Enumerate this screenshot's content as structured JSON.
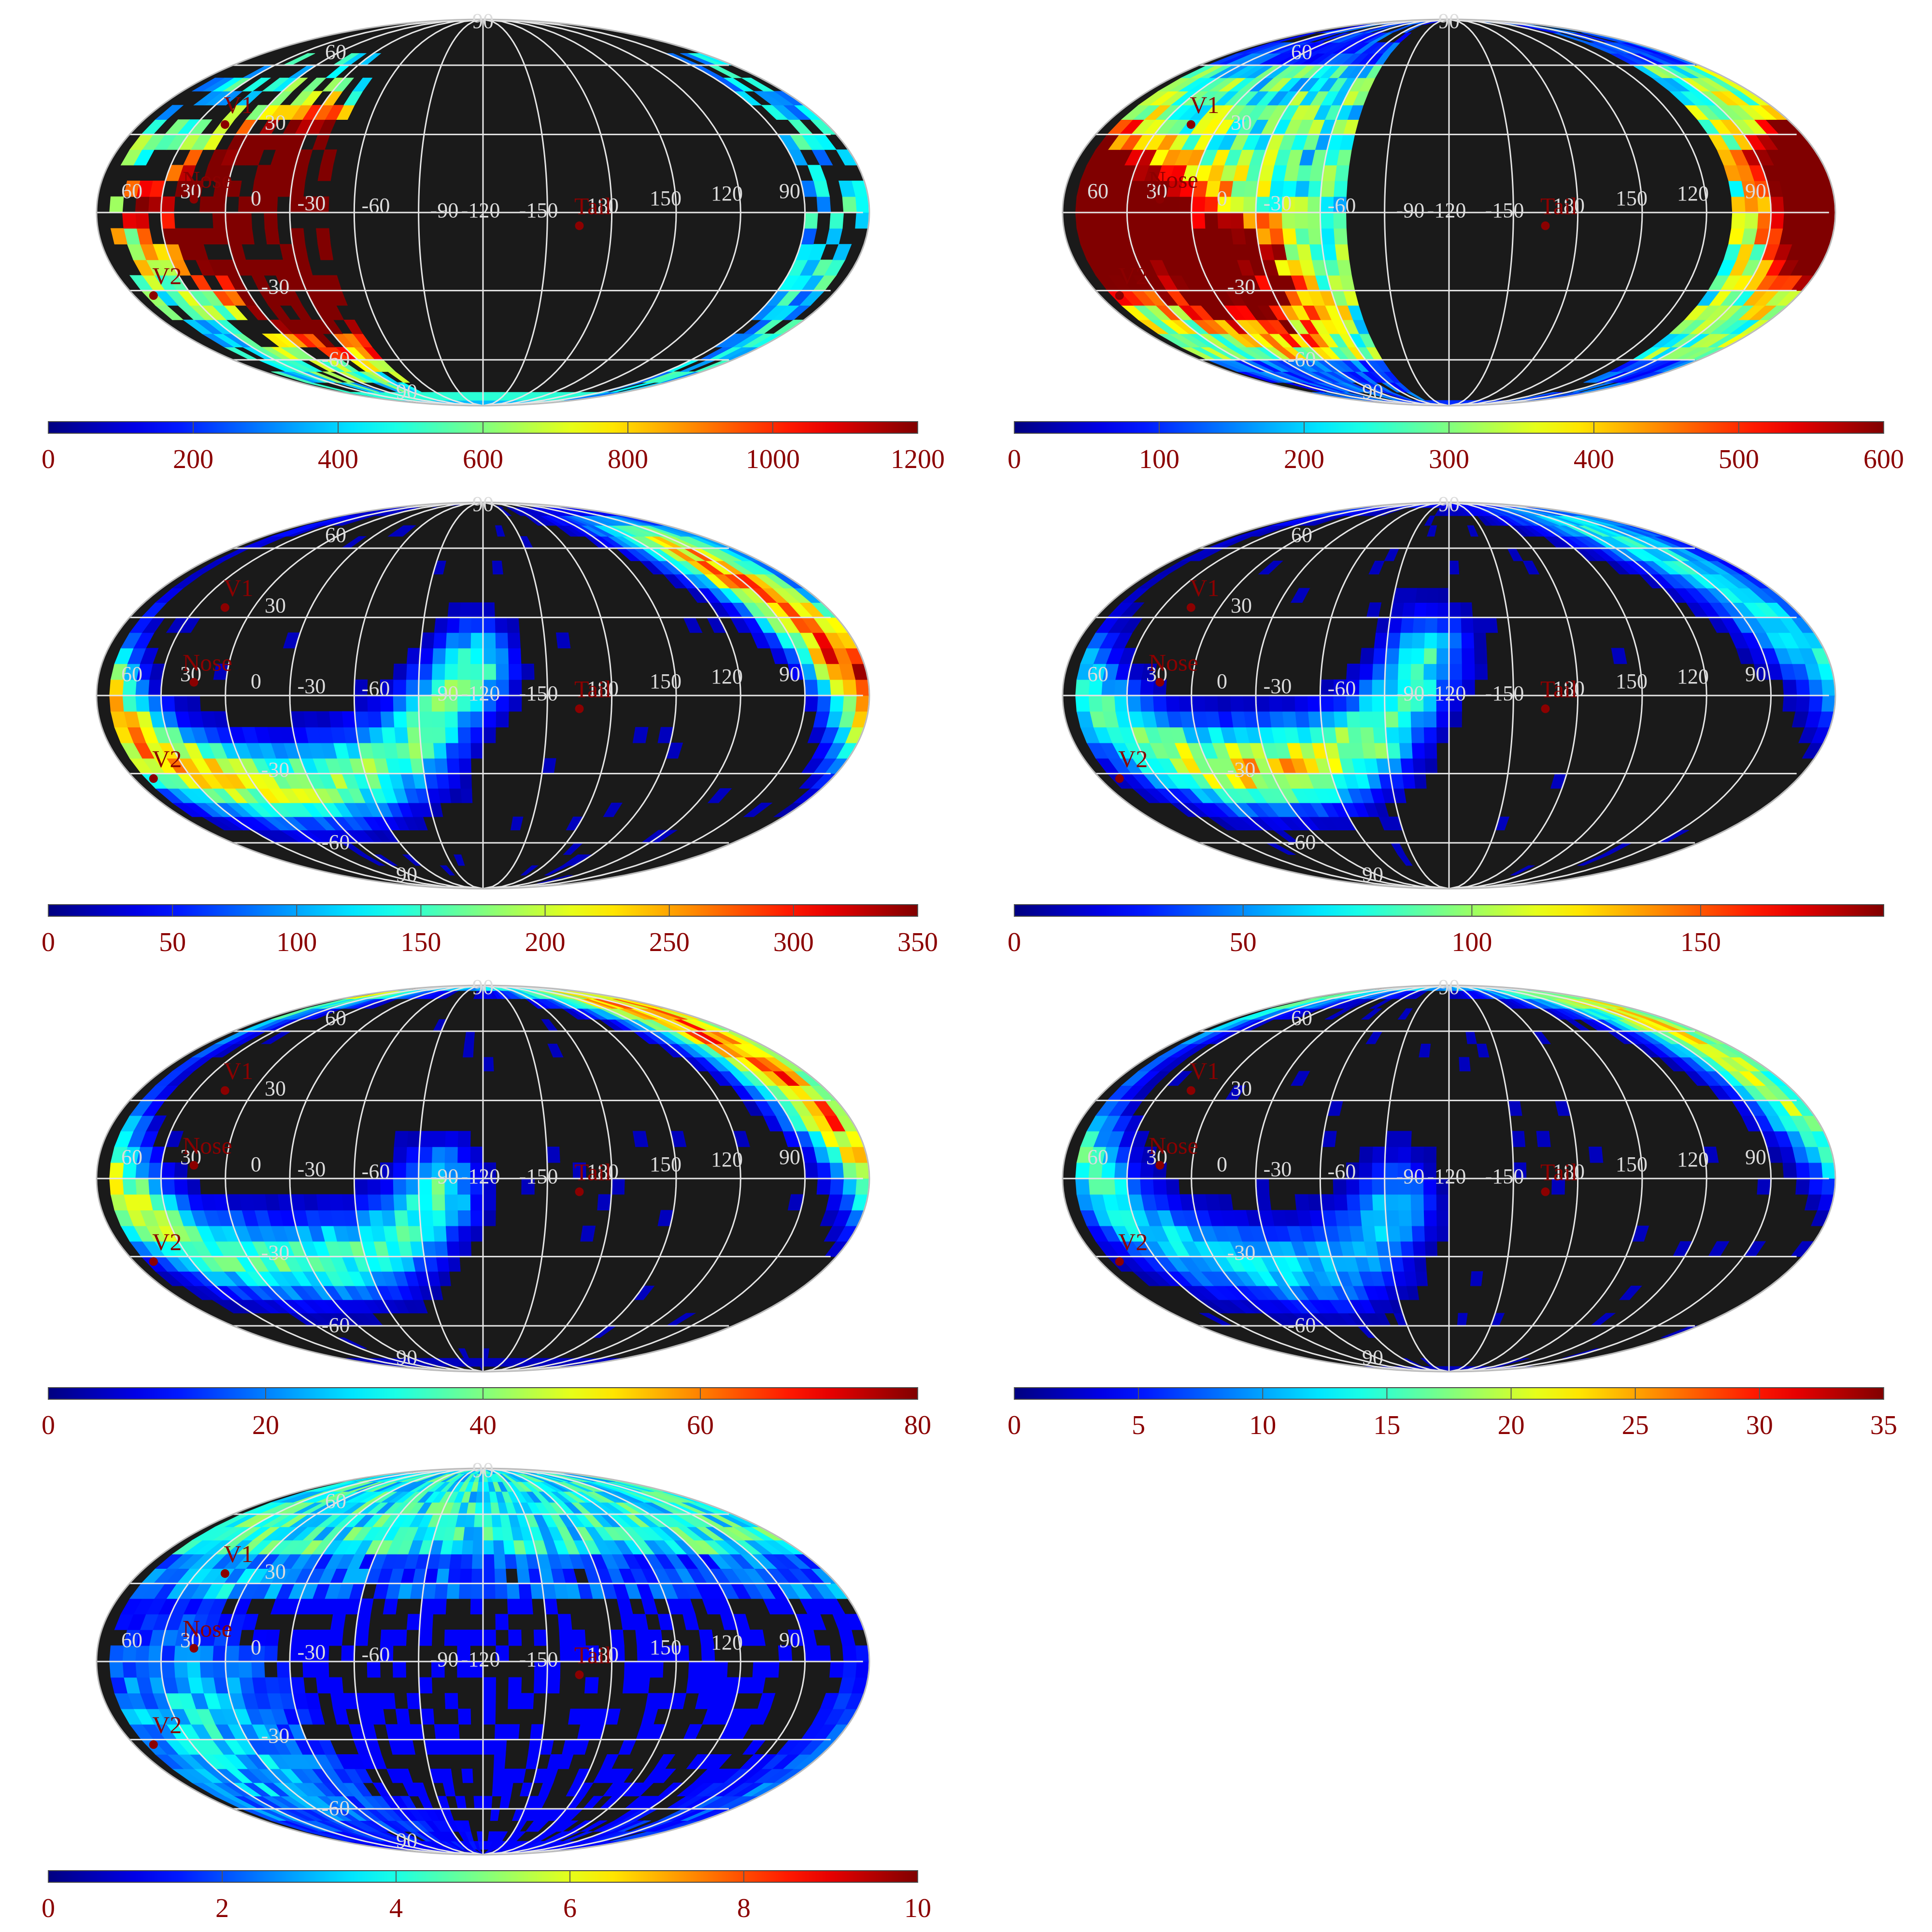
{
  "figure": {
    "background": "#ffffff",
    "map_background": "#1a1a1a",
    "grid_color": "#e6e6e6",
    "grid_label_color": "#dcdcdc",
    "marker_color": "#8b0000",
    "colorbar_label_color": "#8b0000",
    "colormap": "jet",
    "projection": "mollweide"
  },
  "chart_data": [
    {
      "type": "heatmap",
      "projection": "mollweide",
      "colorbar": {
        "range": [
          0,
          1200
        ],
        "tick_labels": [
          "0",
          "200",
          "400",
          "600",
          "800",
          "1000",
          "1200"
        ]
      },
      "grid_labels": {
        "lat": [
          "90",
          "60",
          "30",
          "-30",
          "-60",
          "90"
        ],
        "lon": [
          "60",
          "30",
          "0",
          "-30",
          "-60",
          "-90",
          "-120",
          "-150",
          "180",
          "150",
          "120",
          "90"
        ]
      },
      "markers": [
        {
          "name": "V1",
          "lon": -105,
          "lat": 34
        },
        {
          "name": "Nose",
          "lon": -105,
          "lat": 5
        },
        {
          "name": "V2",
          "lon": -70,
          "lat": -32
        },
        {
          "name": "Tail",
          "lon": 75,
          "lat": -5
        }
      ],
      "hotspots": [
        {
          "lon": -150,
          "lat": 15,
          "value": 1100
        },
        {
          "lon": -150,
          "lat": -10,
          "value": 1150
        },
        {
          "lon": -150,
          "lat": -35,
          "value": 1050
        },
        {
          "lon": -140,
          "lat": 5,
          "value": 900
        },
        {
          "lon": -125,
          "lat": -5,
          "value": 850
        },
        {
          "lon": -90,
          "lat": 0,
          "value": 700
        }
      ],
      "data_lon_range": [
        -170,
        -30
      ],
      "data_lat_range": [
        -90,
        60
      ]
    },
    {
      "type": "heatmap",
      "projection": "mollweide",
      "colorbar": {
        "range": [
          0,
          600
        ],
        "tick_labels": [
          "0",
          "100",
          "200",
          "300",
          "400",
          "500",
          "600"
        ]
      },
      "grid_labels": {
        "lat": [
          "90",
          "60",
          "30",
          "-30",
          "-60",
          "90"
        ],
        "lon": [
          "60",
          "30",
          "0",
          "-30",
          "-60",
          "-90",
          "-120",
          "-150",
          "180",
          "150",
          "120",
          "90"
        ]
      },
      "markers": [
        {
          "name": "V1",
          "lon": -105,
          "lat": 34
        },
        {
          "name": "Nose",
          "lon": -105,
          "lat": 5
        },
        {
          "name": "V2",
          "lon": -70,
          "lat": -32
        },
        {
          "name": "Tail",
          "lon": 75,
          "lat": -5
        }
      ],
      "hotspots": [
        {
          "lon": -60,
          "lat": 0,
          "value": 450
        },
        {
          "lon": -80,
          "lat": -5,
          "value": 420
        },
        {
          "lon": -140,
          "lat": -25,
          "value": 430
        },
        {
          "lon": -50,
          "lat": 10,
          "value": 380
        },
        {
          "lon": -110,
          "lat": -10,
          "value": 350
        }
      ],
      "data_lon_range": [
        -180,
        -10
      ],
      "data_lat_range": [
        -90,
        90
      ]
    },
    {
      "type": "heatmap",
      "projection": "mollweide",
      "colorbar": {
        "range": [
          0,
          350
        ],
        "tick_labels": [
          "0",
          "50",
          "100",
          "150",
          "200",
          "250",
          "300",
          "350"
        ]
      },
      "grid_labels": {
        "lat": [
          "90",
          "60",
          "30",
          "-30",
          "-60",
          "90"
        ],
        "lon": [
          "60",
          "30",
          "0",
          "-30",
          "-60",
          "-90",
          "-120",
          "-150",
          "180",
          "150",
          "120",
          "90"
        ]
      },
      "markers": [
        {
          "name": "V1",
          "lon": -105,
          "lat": 34
        },
        {
          "name": "Nose",
          "lon": -105,
          "lat": 5
        },
        {
          "name": "V2",
          "lon": -70,
          "lat": -32
        },
        {
          "name": "Tail",
          "lon": 75,
          "lat": -5
        }
      ],
      "ribbon": [
        [
          -20,
          60
        ],
        [
          -30,
          45
        ],
        [
          -40,
          30
        ],
        [
          -50,
          15
        ],
        [
          -60,
          0
        ],
        [
          -70,
          -15
        ],
        [
          -90,
          -28
        ],
        [
          -120,
          -35
        ],
        [
          -150,
          -35
        ],
        [
          -180,
          -30
        ],
        [
          155,
          -20
        ],
        [
          140,
          -5
        ],
        [
          125,
          10
        ]
      ],
      "peak": {
        "lon": -55,
        "lat": 12,
        "value": 300
      }
    },
    {
      "type": "heatmap",
      "projection": "mollweide",
      "colorbar": {
        "range": [
          0,
          190
        ],
        "tick_labels": [
          "0",
          "50",
          "100",
          "150"
        ]
      },
      "grid_labels": {
        "lat": [
          "90",
          "60",
          "30",
          "-30",
          "-60",
          "90"
        ],
        "lon": [
          "60",
          "30",
          "0",
          "-30",
          "-60",
          "-90",
          "-120",
          "-150",
          "180",
          "150",
          "120",
          "90"
        ]
      },
      "markers": [
        {
          "name": "V1",
          "lon": -105,
          "lat": 34
        },
        {
          "name": "Nose",
          "lon": -105,
          "lat": 5
        },
        {
          "name": "V2",
          "lon": -70,
          "lat": -32
        },
        {
          "name": "Tail",
          "lon": 75,
          "lat": -5
        }
      ],
      "ribbon": [
        [
          -10,
          70
        ],
        [
          -25,
          55
        ],
        [
          -35,
          40
        ],
        [
          -45,
          25
        ],
        [
          -60,
          10
        ],
        [
          -75,
          -5
        ],
        [
          -95,
          -20
        ],
        [
          -120,
          -28
        ],
        [
          -150,
          -28
        ],
        [
          -180,
          -25
        ],
        [
          155,
          -15
        ],
        [
          140,
          0
        ],
        [
          130,
          15
        ]
      ],
      "peak": {
        "lon": -150,
        "lat": -28,
        "value": 125
      }
    },
    {
      "type": "heatmap",
      "projection": "mollweide",
      "colorbar": {
        "range": [
          0,
          80
        ],
        "tick_labels": [
          "0",
          "20",
          "40",
          "60",
          "80"
        ]
      },
      "grid_labels": {
        "lat": [
          "90",
          "60",
          "30",
          "-30",
          "-60",
          "90"
        ],
        "lon": [
          "60",
          "30",
          "0",
          "-30",
          "-60",
          "-90",
          "-120",
          "-150",
          "180",
          "150",
          "120",
          "90"
        ]
      },
      "markers": [
        {
          "name": "V1",
          "lon": -105,
          "lat": 34
        },
        {
          "name": "Nose",
          "lon": -105,
          "lat": 5
        },
        {
          "name": "V2",
          "lon": -70,
          "lat": -32
        },
        {
          "name": "Tail",
          "lon": 75,
          "lat": -5
        }
      ],
      "ribbon": [
        [
          -30,
          75
        ],
        [
          -35,
          60
        ],
        [
          -40,
          45
        ],
        [
          -45,
          30
        ],
        [
          -55,
          15
        ],
        [
          -65,
          0
        ],
        [
          -80,
          -15
        ],
        [
          -100,
          -28
        ],
        [
          -130,
          -32
        ],
        [
          -160,
          -32
        ],
        [
          175,
          -28
        ],
        [
          155,
          -18
        ],
        [
          140,
          -5
        ]
      ],
      "peak": {
        "lon": -45,
        "lat": 45,
        "value": 62
      }
    },
    {
      "type": "heatmap",
      "projection": "mollweide",
      "colorbar": {
        "range": [
          0,
          35
        ],
        "tick_labels": [
          "0",
          "5",
          "10",
          "15",
          "20",
          "25",
          "30",
          "35"
        ]
      },
      "grid_labels": {
        "lat": [
          "90",
          "60",
          "30",
          "-30",
          "-60",
          "90"
        ],
        "lon": [
          "60",
          "30",
          "0",
          "-30",
          "-60",
          "-90",
          "-120",
          "-150",
          "180",
          "150",
          "120",
          "90"
        ]
      },
      "markers": [
        {
          "name": "V1",
          "lon": -105,
          "lat": 34
        },
        {
          "name": "Nose",
          "lon": -105,
          "lat": 5
        },
        {
          "name": "V2",
          "lon": -70,
          "lat": -32
        },
        {
          "name": "Tail",
          "lon": 75,
          "lat": -5
        }
      ],
      "ribbon": [
        [
          -40,
          75
        ],
        [
          -42,
          60
        ],
        [
          -45,
          45
        ],
        [
          -50,
          30
        ],
        [
          -60,
          15
        ],
        [
          -75,
          0
        ],
        [
          -90,
          -18
        ],
        [
          -115,
          -30
        ],
        [
          -145,
          -35
        ],
        [
          -175,
          -35
        ],
        [
          160,
          -25
        ],
        [
          145,
          -10
        ]
      ],
      "peak": {
        "lon": -45,
        "lat": 62,
        "value": 21
      }
    },
    {
      "type": "heatmap",
      "projection": "mollweide",
      "colorbar": {
        "range": [
          0,
          10
        ],
        "tick_labels": [
          "0",
          "2",
          "4",
          "6",
          "8",
          "10"
        ]
      },
      "grid_labels": {
        "lat": [
          "90",
          "60",
          "30",
          "-30",
          "-60",
          "90"
        ],
        "lon": [
          "60",
          "30",
          "0",
          "-30",
          "-60",
          "-90",
          "-120",
          "-150",
          "180",
          "150",
          "120",
          "90"
        ]
      },
      "markers": [
        {
          "name": "V1",
          "lon": -105,
          "lat": 34
        },
        {
          "name": "Nose",
          "lon": -105,
          "lat": 5
        },
        {
          "name": "V2",
          "lon": -70,
          "lat": -32
        },
        {
          "name": "Tail",
          "lon": 75,
          "lat": -5
        }
      ],
      "polar_band": {
        "lat_min": 45,
        "value": 4.2
      },
      "south_blob": {
        "lon": -100,
        "lat": -30,
        "value": 3.8
      }
    }
  ]
}
